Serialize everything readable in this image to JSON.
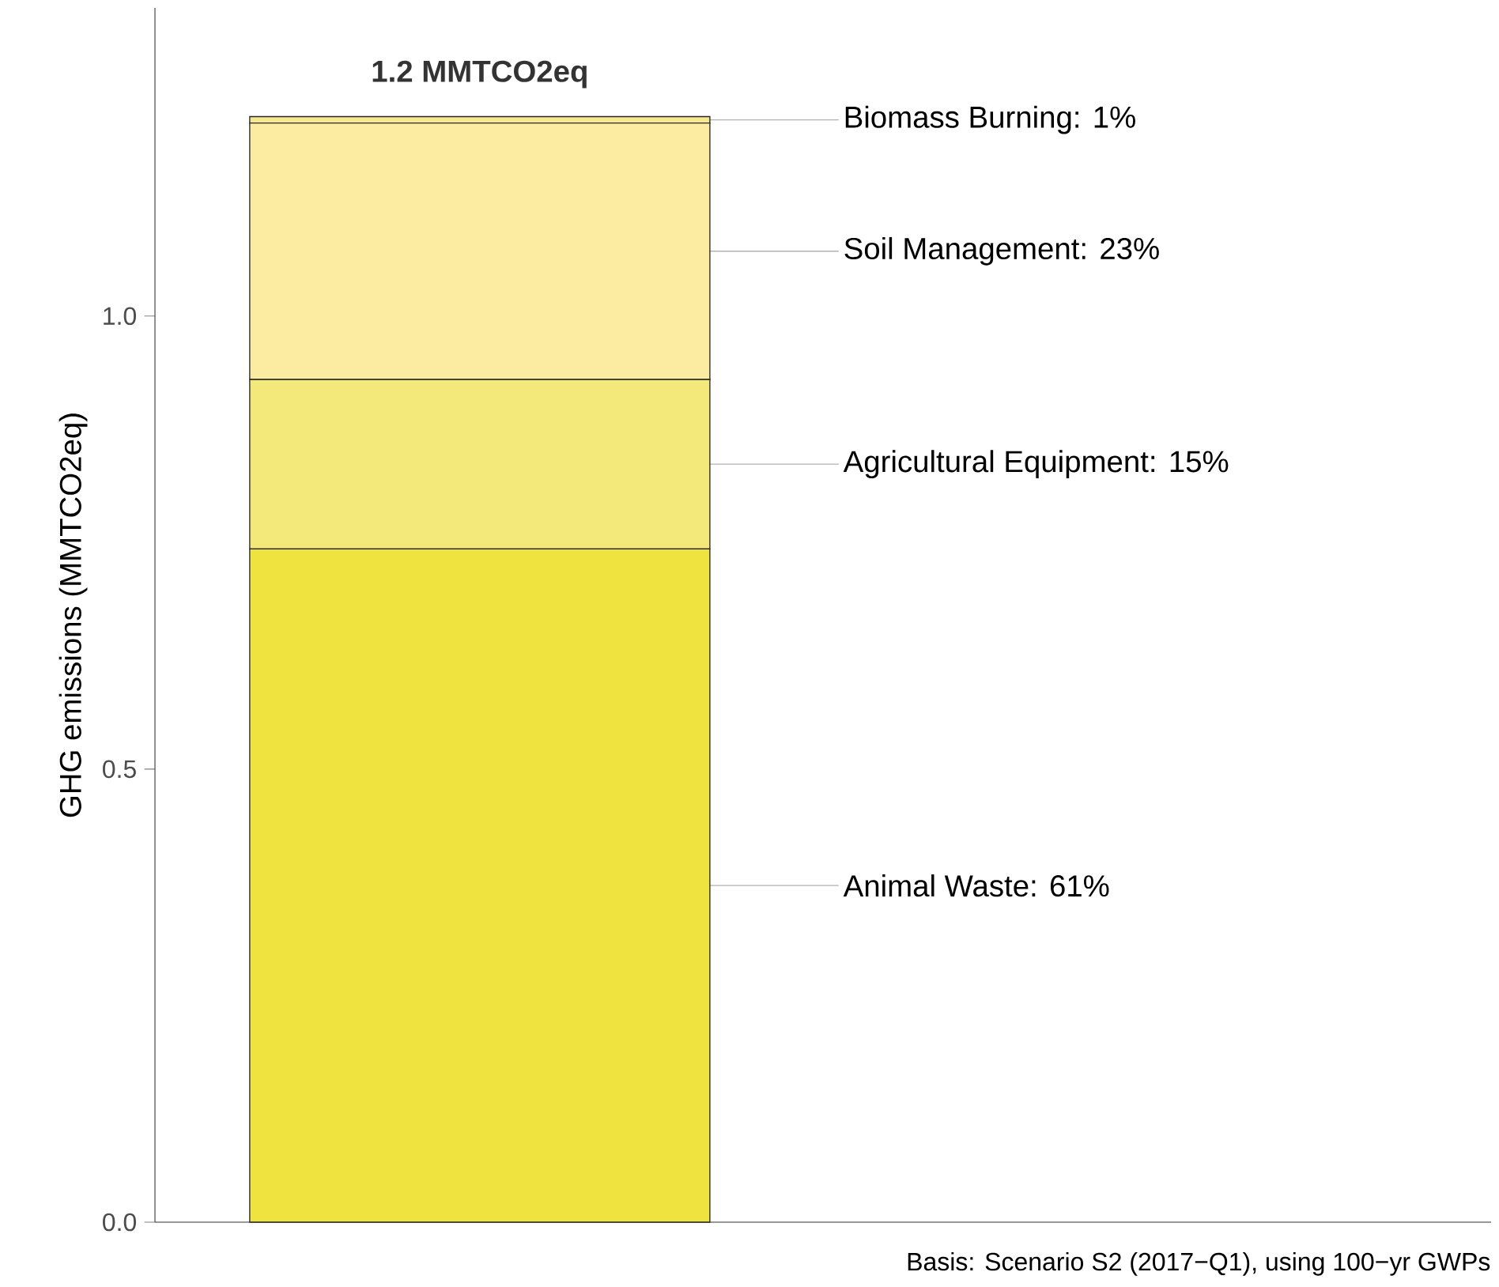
{
  "chart_data": {
    "type": "bar",
    "stacked": true,
    "ylabel": "GHG emissions (MMTCO2eq)",
    "categories": [
      null
    ],
    "series": [
      {
        "name": "Animal Waste: 61%",
        "color": "#efe33f",
        "values": [
          0.743
        ]
      },
      {
        "name": "Agricultural Equipment: 15%",
        "color": "#f3e87a",
        "values": [
          0.187
        ]
      },
      {
        "name": "Soil Management: 23%",
        "color": "#fbeca2",
        "values": [
          0.283
        ]
      },
      {
        "name": "Biomass Burning: 1%",
        "color": "#f6e88c",
        "values": [
          0.007
        ]
      }
    ],
    "ylim": [
      0,
      1.34
    ],
    "yticks": [
      {
        "value": 0,
        "label": "0.0"
      },
      {
        "value": 0.5,
        "label": "0.5"
      },
      {
        "value": 1,
        "label": "1.0"
      }
    ],
    "totals": [
      "1.2 MMTCO2eq"
    ],
    "annotations": [
      "Basis: Scenario S2 (2017−Q1), using 100−yr GWPs"
    ]
  }
}
